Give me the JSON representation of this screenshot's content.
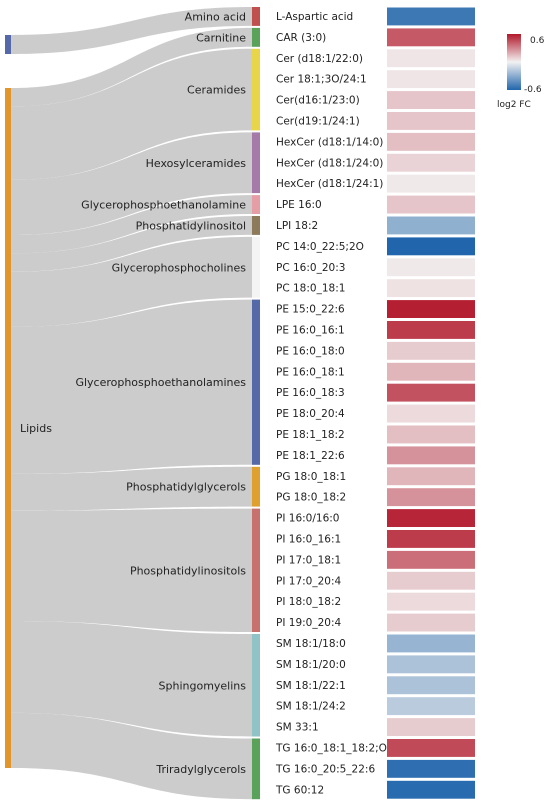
{
  "root_labels": {
    "amino": "",
    "lipids": "Lipids"
  },
  "classes": [
    {
      "name": "Amino acid",
      "color": "#c0504d"
    },
    {
      "name": "Carnitine",
      "color": "#5aa25a"
    },
    {
      "name": "Ceramides",
      "color": "#e8d54a"
    },
    {
      "name": "Hexosylceramides",
      "color": "#a57aa8"
    },
    {
      "name": "Glycerophosphoethanolamine",
      "color": "#e59ea5"
    },
    {
      "name": "Phosphatidylinositol",
      "color": "#8c7a5b"
    },
    {
      "name": "Glycerophosphocholines",
      "color": "#ffffff"
    },
    {
      "name": "Glycerophosphoethanolamines",
      "color": "#5569a8"
    },
    {
      "name": "Phosphatidylglycerols",
      "color": "#e0a030"
    },
    {
      "name": "Phosphatidylinositols",
      "color": "#c8706e"
    },
    {
      "name": "Sphingomyelins",
      "color": "#8fc3c6"
    },
    {
      "name": "Triradylglycerols",
      "color": "#5aa25a"
    }
  ],
  "metabolites": [
    {
      "name": "L-Aspartic acid",
      "fc": -0.52
    },
    {
      "name": "CAR (3:0)",
      "fc": 0.42
    },
    {
      "name": "Cer (d18:1/22:0)",
      "fc": 0.03
    },
    {
      "name": "Cer 18:1;3O/24:1",
      "fc": 0.03
    },
    {
      "name": "Cer(d16:1/23:0)",
      "fc": 0.12
    },
    {
      "name": "Cer(d19:1/24:1)",
      "fc": 0.12
    },
    {
      "name": "HexCer (d18:1/14:0)",
      "fc": 0.14
    },
    {
      "name": "HexCer (d18:1/24:0)",
      "fc": 0.08
    },
    {
      "name": "HexCer (d18:1/24:1)",
      "fc": 0.02
    },
    {
      "name": "LPE 16:0",
      "fc": 0.12
    },
    {
      "name": "LPI 18:2",
      "fc": -0.28
    },
    {
      "name": "PC 14:0_22:5;2O",
      "fc": -0.6
    },
    {
      "name": "PC 16:0_20:3",
      "fc": 0.02
    },
    {
      "name": "PC 18:0_18:1",
      "fc": 0.04
    },
    {
      "name": "PE 15:0_22:6",
      "fc": 0.58
    },
    {
      "name": "PE 16:0_16:1",
      "fc": 0.5
    },
    {
      "name": "PE 16:0_18:0",
      "fc": 0.1
    },
    {
      "name": "PE 16:0_18:1",
      "fc": 0.16
    },
    {
      "name": "PE 16:0_18:3",
      "fc": 0.44
    },
    {
      "name": "PE 18:0_20:4",
      "fc": 0.06
    },
    {
      "name": "PE 18:1_18:2",
      "fc": 0.14
    },
    {
      "name": "PE 18:1_22:6",
      "fc": 0.26
    },
    {
      "name": "PG 18:0_18:1",
      "fc": 0.16
    },
    {
      "name": "PG 18:0_18:2",
      "fc": 0.26
    },
    {
      "name": "PI 16:0/16:0",
      "fc": 0.56
    },
    {
      "name": "PI 16:0_16:1",
      "fc": 0.5
    },
    {
      "name": "PI 17:0_18:1",
      "fc": 0.36
    },
    {
      "name": "PI 17:0_20:4",
      "fc": 0.1
    },
    {
      "name": "PI 18:0_18:2",
      "fc": 0.06
    },
    {
      "name": "PI 19:0_20:4",
      "fc": 0.1
    },
    {
      "name": "SM 18:1/18:0",
      "fc": -0.26
    },
    {
      "name": "SM 18:1/20:0",
      "fc": -0.2
    },
    {
      "name": "SM 18:1/22:1",
      "fc": -0.2
    },
    {
      "name": "SM 18:1/24:2",
      "fc": -0.16
    },
    {
      "name": "SM 33:1",
      "fc": 0.1
    },
    {
      "name": "TG 16:0_18:1_18:2;O",
      "fc": 0.46
    },
    {
      "name": "TG 16:0_20:5_22:6",
      "fc": -0.56
    },
    {
      "name": "TG 60:12",
      "fc": -0.58
    }
  ],
  "legend": {
    "max_label": "0.6",
    "min_label": "-0.6",
    "title": "log2 FC",
    "max": 0.6,
    "min": -0.6
  }
}
